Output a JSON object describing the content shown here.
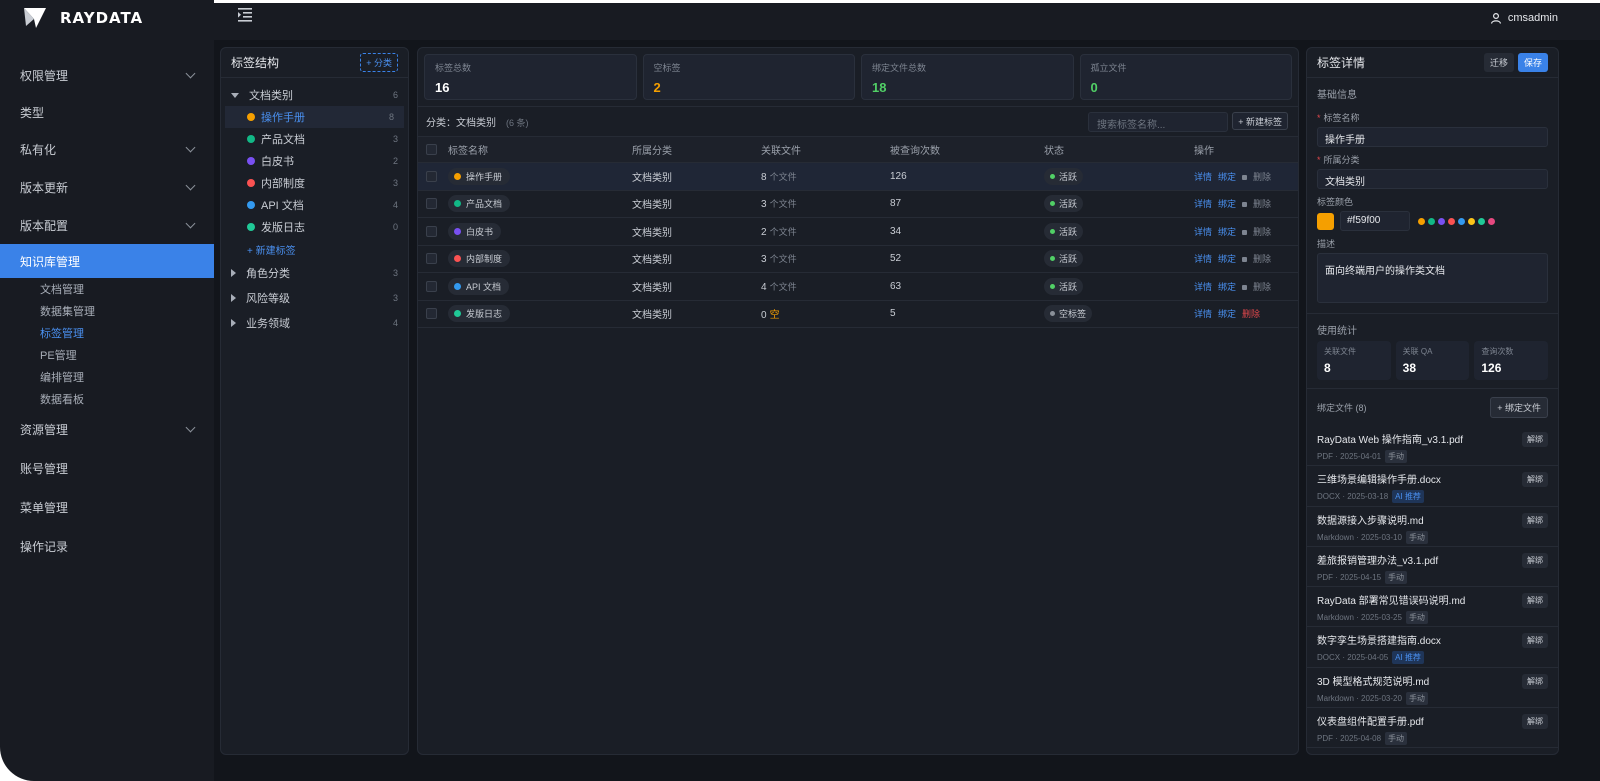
{
  "brand": {
    "name": "RAYDATA"
  },
  "user": {
    "name": "cmsadmin"
  },
  "nav": {
    "items": [
      {
        "label": "权限管理",
        "chevron": true
      },
      {
        "label": "类型",
        "chevron": false
      },
      {
        "label": "私有化",
        "chevron": true
      },
      {
        "label": "版本更新",
        "chevron": true
      },
      {
        "label": "版本配置",
        "chevron": true
      }
    ],
    "active": {
      "label": "知识库管理"
    },
    "sub": [
      {
        "label": "文档管理"
      },
      {
        "label": "数据集管理"
      },
      {
        "label": "标签管理"
      },
      {
        "label": "PE管理"
      },
      {
        "label": "编排管理"
      },
      {
        "label": "数据看板"
      }
    ],
    "after": [
      {
        "label": "资源管理",
        "chevron": true
      },
      {
        "label": "账号管理",
        "chevron": false
      },
      {
        "label": "菜单管理",
        "chevron": false
      },
      {
        "label": "操作记录",
        "chevron": false
      }
    ]
  },
  "tree": {
    "title": "标签结构",
    "add_category": "+ 分类",
    "root": {
      "label": "文档类别",
      "count": "6"
    },
    "leaves": [
      {
        "label": "操作手册",
        "count": "8",
        "color": "#f59f00"
      },
      {
        "label": "产品文档",
        "count": "3",
        "color": "#12b886"
      },
      {
        "label": "白皮书",
        "count": "2",
        "color": "#7950f2"
      },
      {
        "label": "内部制度",
        "count": "3",
        "color": "#fa5252"
      },
      {
        "label": "API 文档",
        "count": "4",
        "color": "#339af0"
      },
      {
        "label": "发版日志",
        "count": "0",
        "color": "#20c997"
      }
    ],
    "add_tag": "+ 新建标签",
    "others": [
      {
        "label": "角色分类",
        "count": "3"
      },
      {
        "label": "风险等级",
        "count": "3"
      },
      {
        "label": "业务领域",
        "count": "4"
      }
    ]
  },
  "stats": [
    {
      "label": "标签总数",
      "value": "16",
      "color": "#ffffff"
    },
    {
      "label": "空标签",
      "value": "2",
      "color": "#f59f00"
    },
    {
      "label": "绑定文件总数",
      "value": "18",
      "color": "#51cf66"
    },
    {
      "label": "孤立文件",
      "value": "0",
      "color": "#51cf66"
    }
  ],
  "toolbar": {
    "category_prefix": "分类：",
    "category": "文档类别",
    "count": "(6 条)",
    "search_placeholder": "搜索标签名称...",
    "new_tag": "+ 新建标签"
  },
  "table": {
    "headers": [
      "标签名称",
      "所属分类",
      "关联文件",
      "被查询次数",
      "状态",
      "操作"
    ],
    "rows": [
      {
        "name": "操作手册",
        "color": "#f59f00",
        "category": "文档类别",
        "files": "8",
        "unit": "个文件",
        "queries": "126",
        "status": "活跃",
        "status_color": "#51cf66",
        "del": "删除",
        "locked": true
      },
      {
        "name": "产品文档",
        "color": "#12b886",
        "category": "文档类别",
        "files": "3",
        "unit": "个文件",
        "queries": "87",
        "status": "活跃",
        "status_color": "#51cf66",
        "del": "删除",
        "locked": true
      },
      {
        "name": "白皮书",
        "color": "#7950f2",
        "category": "文档类别",
        "files": "2",
        "unit": "个文件",
        "queries": "34",
        "status": "活跃",
        "status_color": "#51cf66",
        "del": "删除",
        "locked": true
      },
      {
        "name": "内部制度",
        "color": "#fa5252",
        "category": "文档类别",
        "files": "3",
        "unit": "个文件",
        "queries": "52",
        "status": "活跃",
        "status_color": "#51cf66",
        "del": "删除",
        "locked": true
      },
      {
        "name": "API 文档",
        "color": "#339af0",
        "category": "文档类别",
        "files": "4",
        "unit": "个文件",
        "queries": "63",
        "status": "活跃",
        "status_color": "#51cf66",
        "del": "删除",
        "locked": true
      },
      {
        "name": "发版日志",
        "color": "#20c997",
        "category": "文档类别",
        "files": "0",
        "unit": "空",
        "queries": "5",
        "status": "空标签",
        "status_color": "#8a9099",
        "del": "删除",
        "locked": false
      }
    ],
    "op_detail": "详情",
    "op_bind": "绑定"
  },
  "detail": {
    "title": "标签详情",
    "migrate": "迁移",
    "save": "保存",
    "basic": "基础信息",
    "name_label": "标签名称",
    "name_value": "操作手册",
    "cat_label": "所属分类",
    "cat_value": "文档类别",
    "color_label": "标签颜色",
    "color_hex": "#f59f00",
    "palette": [
      "#f59f00",
      "#12b886",
      "#7950f2",
      "#fa5252",
      "#339af0",
      "#fcc419",
      "#20c997",
      "#e64980"
    ],
    "desc_label": "描述",
    "desc_value": "面向终端用户的操作类文档",
    "usage": "使用统计",
    "usage_stats": [
      {
        "label": "关联文件",
        "value": "8"
      },
      {
        "label": "关联 QA",
        "value": "38"
      },
      {
        "label": "查询次数",
        "value": "126"
      }
    ],
    "bound_title": "绑定文件 (8)",
    "bind_button": "+ 绑定文件",
    "unbind": "解绑",
    "files": [
      {
        "name": "RayData Web 操作指南_v3.1.pdf",
        "meta": "PDF · 2025-04-01",
        "tag": "手动",
        "ai": false
      },
      {
        "name": "三维场景编辑操作手册.docx",
        "meta": "DOCX · 2025-03-18",
        "tag": "AI 推荐",
        "ai": true
      },
      {
        "name": "数据源接入步骤说明.md",
        "meta": "Markdown · 2025-03-10",
        "tag": "手动",
        "ai": false
      },
      {
        "name": "差旅报销管理办法_v3.1.pdf",
        "meta": "PDF · 2025-04-15",
        "tag": "手动",
        "ai": false
      },
      {
        "name": "RayData 部署常见错误码说明.md",
        "meta": "Markdown · 2025-03-25",
        "tag": "手动",
        "ai": false
      },
      {
        "name": "数字孪生场景搭建指南.docx",
        "meta": "DOCX · 2025-04-05",
        "tag": "AI 推荐",
        "ai": true
      },
      {
        "name": "3D 模型格式规范说明.md",
        "meta": "Markdown · 2025-03-20",
        "tag": "手动",
        "ai": false
      },
      {
        "name": "仪表盘组件配置手册.pdf",
        "meta": "PDF · 2025-04-08",
        "tag": "手动",
        "ai": false
      }
    ]
  }
}
